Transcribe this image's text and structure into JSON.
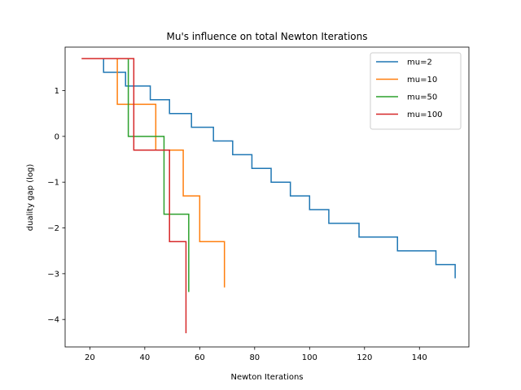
{
  "chart_data": {
    "type": "line",
    "title": "Mu's influence on total Newton Iterations",
    "xlabel": "Newton Iterations",
    "ylabel": "duality gap (log)",
    "xlim": [
      11,
      158
    ],
    "ylim": [
      -4.6,
      1.95
    ],
    "xticks": [
      20,
      40,
      60,
      80,
      100,
      120,
      140
    ],
    "yticks": [
      1,
      0,
      -1,
      -2,
      -3,
      -4
    ],
    "ytick_labels": [
      "1",
      "0",
      "−1",
      "−2",
      "−3",
      "−4"
    ],
    "grid": false,
    "legend_position": "top-right",
    "step": "post",
    "series": [
      {
        "name": "mu=2",
        "color": "#1f77b4",
        "x": [
          25,
          25,
          33,
          33,
          42,
          42,
          49,
          49,
          57,
          57,
          65,
          65,
          72,
          72,
          79,
          79,
          86,
          86,
          93,
          93,
          100,
          100,
          107,
          107,
          118,
          118,
          132,
          132,
          146,
          146,
          153,
          153
        ],
        "y": [
          1.7,
          1.4,
          1.4,
          1.1,
          1.1,
          0.8,
          0.8,
          0.5,
          0.5,
          0.2,
          0.2,
          -0.1,
          -0.1,
          -0.4,
          -0.4,
          -0.7,
          -0.7,
          -1.0,
          -1.0,
          -1.3,
          -1.3,
          -1.6,
          -1.6,
          -1.9,
          -1.9,
          -2.2,
          -2.2,
          -2.5,
          -2.5,
          -2.8,
          -2.8,
          -3.1
        ]
      },
      {
        "name": "mu=10",
        "color": "#ff7f0e",
        "x": [
          30,
          30,
          44,
          44,
          54,
          54,
          60,
          60,
          69,
          69
        ],
        "y": [
          1.7,
          0.7,
          0.7,
          -0.3,
          -0.3,
          -1.3,
          -1.3,
          -2.3,
          -2.3,
          -3.3
        ]
      },
      {
        "name": "mu=50",
        "color": "#2ca02c",
        "x": [
          34,
          34,
          47,
          47,
          56,
          56
        ],
        "y": [
          1.7,
          0.0,
          0.0,
          -1.7,
          -1.7,
          -3.4
        ]
      },
      {
        "name": "mu=100",
        "color": "#d62728",
        "x": [
          17,
          36,
          36,
          49,
          49,
          55,
          55
        ],
        "y": [
          1.7,
          1.7,
          -0.3,
          -0.3,
          -2.3,
          -2.3,
          -4.3
        ]
      }
    ]
  }
}
